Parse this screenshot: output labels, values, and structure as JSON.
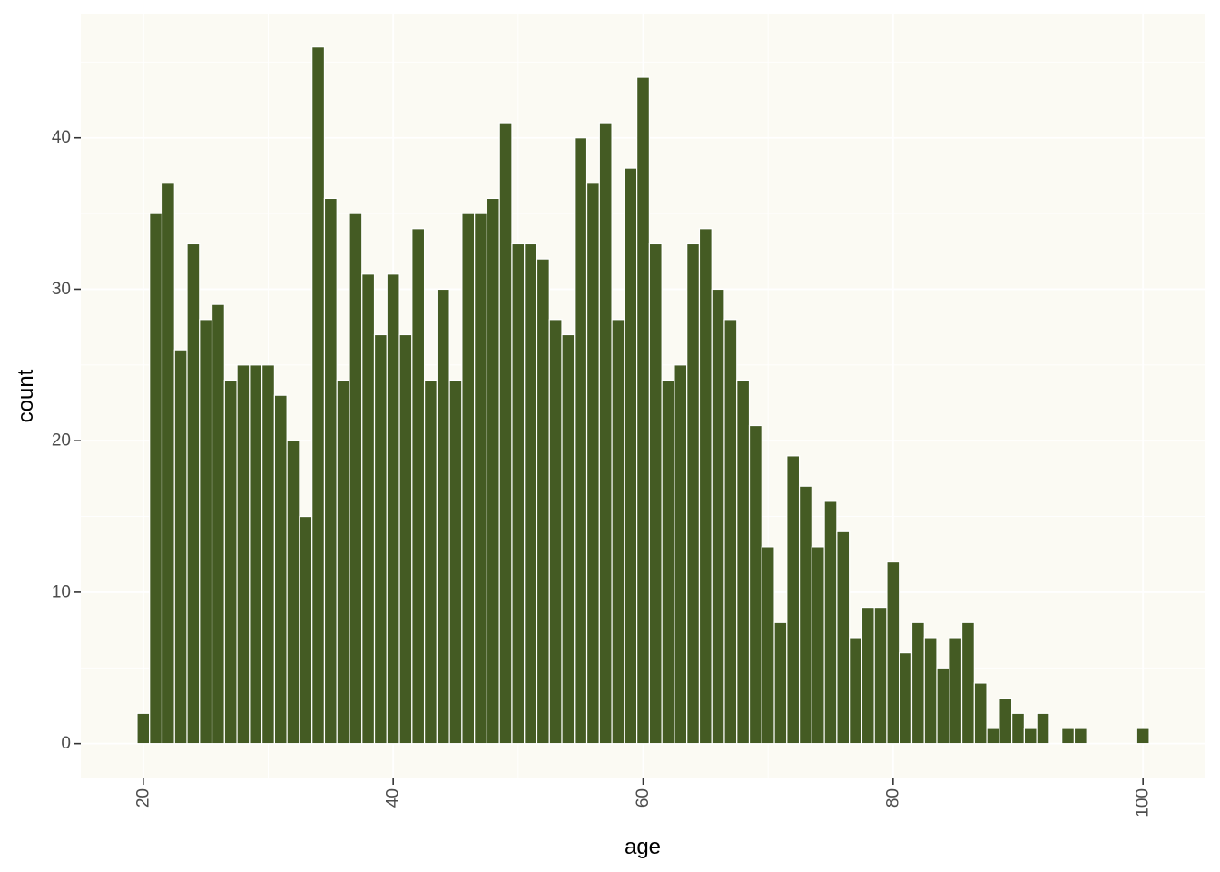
{
  "chart_data": {
    "type": "bar",
    "xlabel": "age",
    "ylabel": "count",
    "xlim": [
      15,
      105
    ],
    "ylim": [
      -2.3,
      48.2
    ],
    "x_ticks": [
      20,
      40,
      60,
      80,
      100
    ],
    "y_ticks": [
      0,
      10,
      20,
      30,
      40
    ],
    "bin_width": 1,
    "x": [
      20,
      21,
      22,
      23,
      24,
      25,
      26,
      27,
      28,
      29,
      30,
      31,
      32,
      33,
      34,
      35,
      36,
      37,
      38,
      39,
      40,
      41,
      42,
      43,
      44,
      45,
      46,
      47,
      48,
      49,
      50,
      51,
      52,
      53,
      54,
      55,
      56,
      57,
      58,
      59,
      60,
      61,
      62,
      63,
      64,
      65,
      66,
      67,
      68,
      69,
      70,
      71,
      72,
      73,
      74,
      75,
      76,
      77,
      78,
      79,
      80,
      81,
      82,
      83,
      84,
      85,
      86,
      87,
      88,
      89,
      90,
      91,
      92,
      93,
      94,
      95,
      96,
      97,
      98,
      99,
      100
    ],
    "values": [
      2,
      35,
      37,
      26,
      33,
      28,
      29,
      24,
      25,
      25,
      25,
      23,
      20,
      15,
      46,
      36,
      24,
      35,
      31,
      27,
      31,
      27,
      34,
      24,
      30,
      24,
      35,
      35,
      36,
      41,
      33,
      33,
      32,
      28,
      27,
      40,
      37,
      41,
      28,
      38,
      44,
      33,
      24,
      25,
      33,
      34,
      30,
      28,
      24,
      21,
      13,
      8,
      19,
      17,
      13,
      16,
      14,
      7,
      9,
      9,
      12,
      6,
      8,
      7,
      5,
      7,
      8,
      4,
      1,
      3,
      2,
      1,
      2,
      0,
      1,
      1,
      0,
      0,
      0,
      0,
      1
    ],
    "grid": true,
    "colors": {
      "panel_background": "#fbfaf3",
      "grid": "#ffffff",
      "bar_fill": "#445b23",
      "bar_outline": "#ffffff",
      "tick_text": "#4d4d4d",
      "tick_mark": "#333333"
    }
  }
}
